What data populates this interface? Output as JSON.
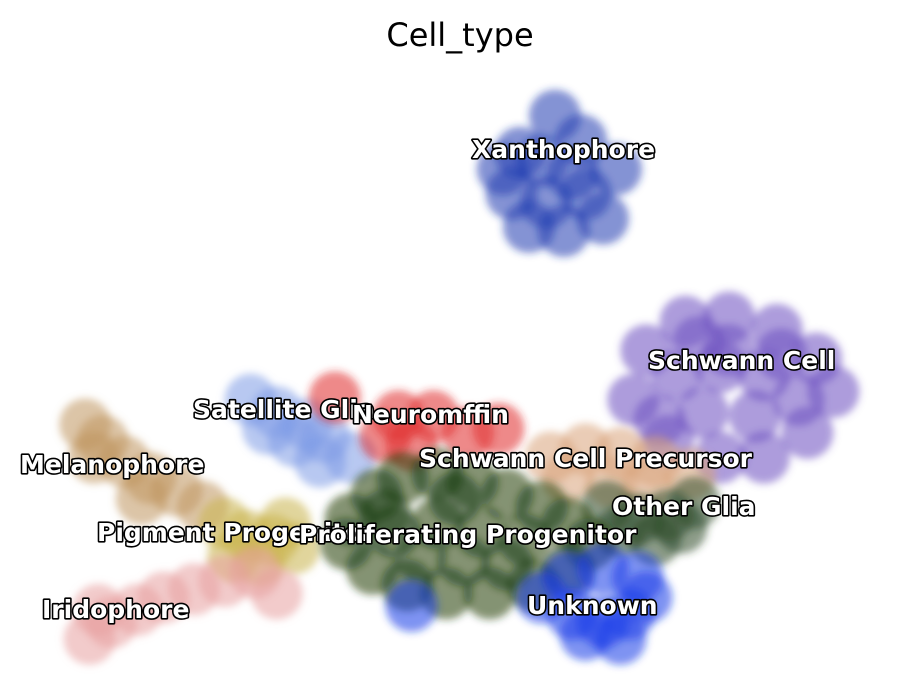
{
  "chart_data": {
    "type": "scatter",
    "title": "Cell_type",
    "xlabel": "",
    "ylabel": "",
    "grid": false,
    "axes_visible": false,
    "legend": "on data",
    "xlim": [
      0,
      10
    ],
    "ylim": [
      0,
      7.6
    ],
    "clusters": [
      {
        "name": "Xanthophore",
        "color": "#1f3cb0",
        "label_at": [
          6.2,
          6.05
        ],
        "points": [
          [
            6.15,
            6.9
          ],
          [
            5.75,
            6.45
          ],
          [
            6.45,
            6.6
          ],
          [
            6.85,
            6.25
          ],
          [
            6.5,
            5.95
          ],
          [
            6.05,
            5.85
          ],
          [
            5.65,
            5.95
          ],
          [
            5.85,
            5.55
          ],
          [
            6.25,
            5.5
          ],
          [
            6.7,
            5.65
          ],
          [
            5.55,
            6.25
          ],
          [
            6.0,
            6.35
          ],
          [
            6.35,
            6.2
          ]
        ]
      },
      {
        "name": "Schwann Cell",
        "color": "#6a4cc0",
        "label_at": [
          8.18,
          3.72
        ],
        "points": [
          [
            7.2,
            4.05
          ],
          [
            7.65,
            4.4
          ],
          [
            8.15,
            4.45
          ],
          [
            8.7,
            4.3
          ],
          [
            9.15,
            3.95
          ],
          [
            9.35,
            3.55
          ],
          [
            9.05,
            3.05
          ],
          [
            8.55,
            2.75
          ],
          [
            8.05,
            2.75
          ],
          [
            7.45,
            2.95
          ],
          [
            7.05,
            3.45
          ],
          [
            7.55,
            3.75
          ],
          [
            8.05,
            3.85
          ],
          [
            8.55,
            3.75
          ],
          [
            8.95,
            3.45
          ],
          [
            8.45,
            3.25
          ],
          [
            7.85,
            3.3
          ],
          [
            8.15,
            4.05
          ],
          [
            7.35,
            3.2
          ],
          [
            8.75,
            4.0
          ],
          [
            7.8,
            4.15
          ]
        ]
      },
      {
        "name": "Satellite Glia",
        "color": "#7e9ae6",
        "label_at": [
          3.22,
          3.05
        ],
        "points": [
          [
            2.65,
            3.45
          ],
          [
            2.95,
            3.3
          ],
          [
            3.3,
            3.15
          ],
          [
            3.5,
            3.0
          ],
          [
            3.45,
            2.7
          ],
          [
            3.8,
            2.75
          ],
          [
            3.15,
            2.95
          ],
          [
            2.85,
            3.1
          ]
        ]
      },
      {
        "name": "Neuromffin",
        "color": "#e02b2b",
        "label_at": [
          4.88,
          2.98
        ],
        "points": [
          [
            3.62,
            3.48
          ],
          [
            4.35,
            3.25
          ],
          [
            4.75,
            3.25
          ],
          [
            4.5,
            2.9
          ],
          [
            5.15,
            3.05
          ],
          [
            5.5,
            3.1
          ],
          [
            4.2,
            3.0
          ]
        ]
      },
      {
        "name": "Melanophore",
        "color": "#c0955e",
        "label_at": [
          1.35,
          2.55
        ],
        "points": [
          [
            0.75,
            3.15
          ],
          [
            0.95,
            2.95
          ],
          [
            1.2,
            2.7
          ],
          [
            1.5,
            2.5
          ],
          [
            1.8,
            2.35
          ],
          [
            2.1,
            2.15
          ],
          [
            0.85,
            2.75
          ],
          [
            1.4,
            2.25
          ]
        ]
      },
      {
        "name": "Pigment Progenitor",
        "color": "#c8b24a",
        "label_at": [
          2.65,
          1.75
        ],
        "points": [
          [
            2.35,
            1.95
          ],
          [
            2.6,
            1.8
          ],
          [
            2.9,
            1.75
          ],
          [
            3.15,
            1.65
          ],
          [
            2.45,
            1.55
          ],
          [
            3.05,
            1.95
          ],
          [
            2.75,
            1.5
          ]
        ]
      },
      {
        "name": "Iridophore",
        "color": "#e8a0a0",
        "label_at": [
          1.35,
          0.85
        ],
        "points": [
          [
            0.8,
            0.55
          ],
          [
            1.05,
            0.75
          ],
          [
            1.35,
            0.9
          ],
          [
            1.65,
            1.05
          ],
          [
            2.0,
            1.15
          ],
          [
            2.35,
            1.25
          ],
          [
            2.7,
            1.35
          ],
          [
            0.9,
            0.9
          ],
          [
            2.95,
            1.1
          ]
        ]
      },
      {
        "name": "Schwann Cell Precursor",
        "color": "#d9a27a",
        "label_at": [
          6.6,
          2.52
        ],
        "points": [
          [
            6.1,
            2.75
          ],
          [
            6.5,
            2.85
          ],
          [
            6.9,
            2.8
          ],
          [
            7.3,
            2.7
          ],
          [
            7.7,
            2.55
          ],
          [
            6.3,
            2.5
          ],
          [
            6.8,
            2.45
          ],
          [
            7.2,
            2.4
          ]
        ]
      },
      {
        "name": "Other Glia",
        "color": "#2d4a2a",
        "label_at": [
          7.55,
          2.0
        ],
        "points": [
          [
            6.75,
            2.15
          ],
          [
            7.1,
            2.0
          ],
          [
            7.45,
            2.05
          ],
          [
            7.75,
            2.2
          ],
          [
            7.3,
            1.75
          ],
          [
            6.9,
            1.85
          ],
          [
            7.6,
            1.9
          ]
        ]
      },
      {
        "name": "Proliferating Progenitor",
        "color": "#1b3a0a",
        "label_at": [
          5.3,
          1.7
        ],
        "points": [
          [
            3.8,
            2.0
          ],
          [
            4.1,
            2.3
          ],
          [
            4.4,
            2.5
          ],
          [
            4.8,
            2.55
          ],
          [
            5.2,
            2.45
          ],
          [
            5.6,
            2.3
          ],
          [
            6.0,
            2.15
          ],
          [
            6.3,
            1.95
          ],
          [
            6.55,
            1.7
          ],
          [
            6.3,
            1.4
          ],
          [
            5.9,
            1.2
          ],
          [
            5.4,
            1.1
          ],
          [
            4.9,
            1.1
          ],
          [
            4.45,
            1.2
          ],
          [
            4.05,
            1.4
          ],
          [
            3.75,
            1.7
          ],
          [
            4.3,
            1.85
          ],
          [
            4.8,
            1.95
          ],
          [
            5.3,
            1.85
          ],
          [
            5.8,
            1.75
          ],
          [
            4.6,
            1.55
          ],
          [
            5.1,
            1.5
          ],
          [
            5.6,
            1.45
          ],
          [
            4.2,
            2.05
          ],
          [
            5.0,
            2.25
          ]
        ]
      },
      {
        "name": "Unknown",
        "color": "#1a3ae8",
        "label_at": [
          6.55,
          0.9
        ],
        "points": [
          [
            6.0,
            1.05
          ],
          [
            6.35,
            0.85
          ],
          [
            6.7,
            0.75
          ],
          [
            7.0,
            0.85
          ],
          [
            7.2,
            1.05
          ],
          [
            7.1,
            1.3
          ],
          [
            6.7,
            1.4
          ],
          [
            6.3,
            1.3
          ],
          [
            4.5,
            0.95
          ],
          [
            6.9,
            0.55
          ],
          [
            6.5,
            0.6
          ]
        ]
      }
    ]
  }
}
